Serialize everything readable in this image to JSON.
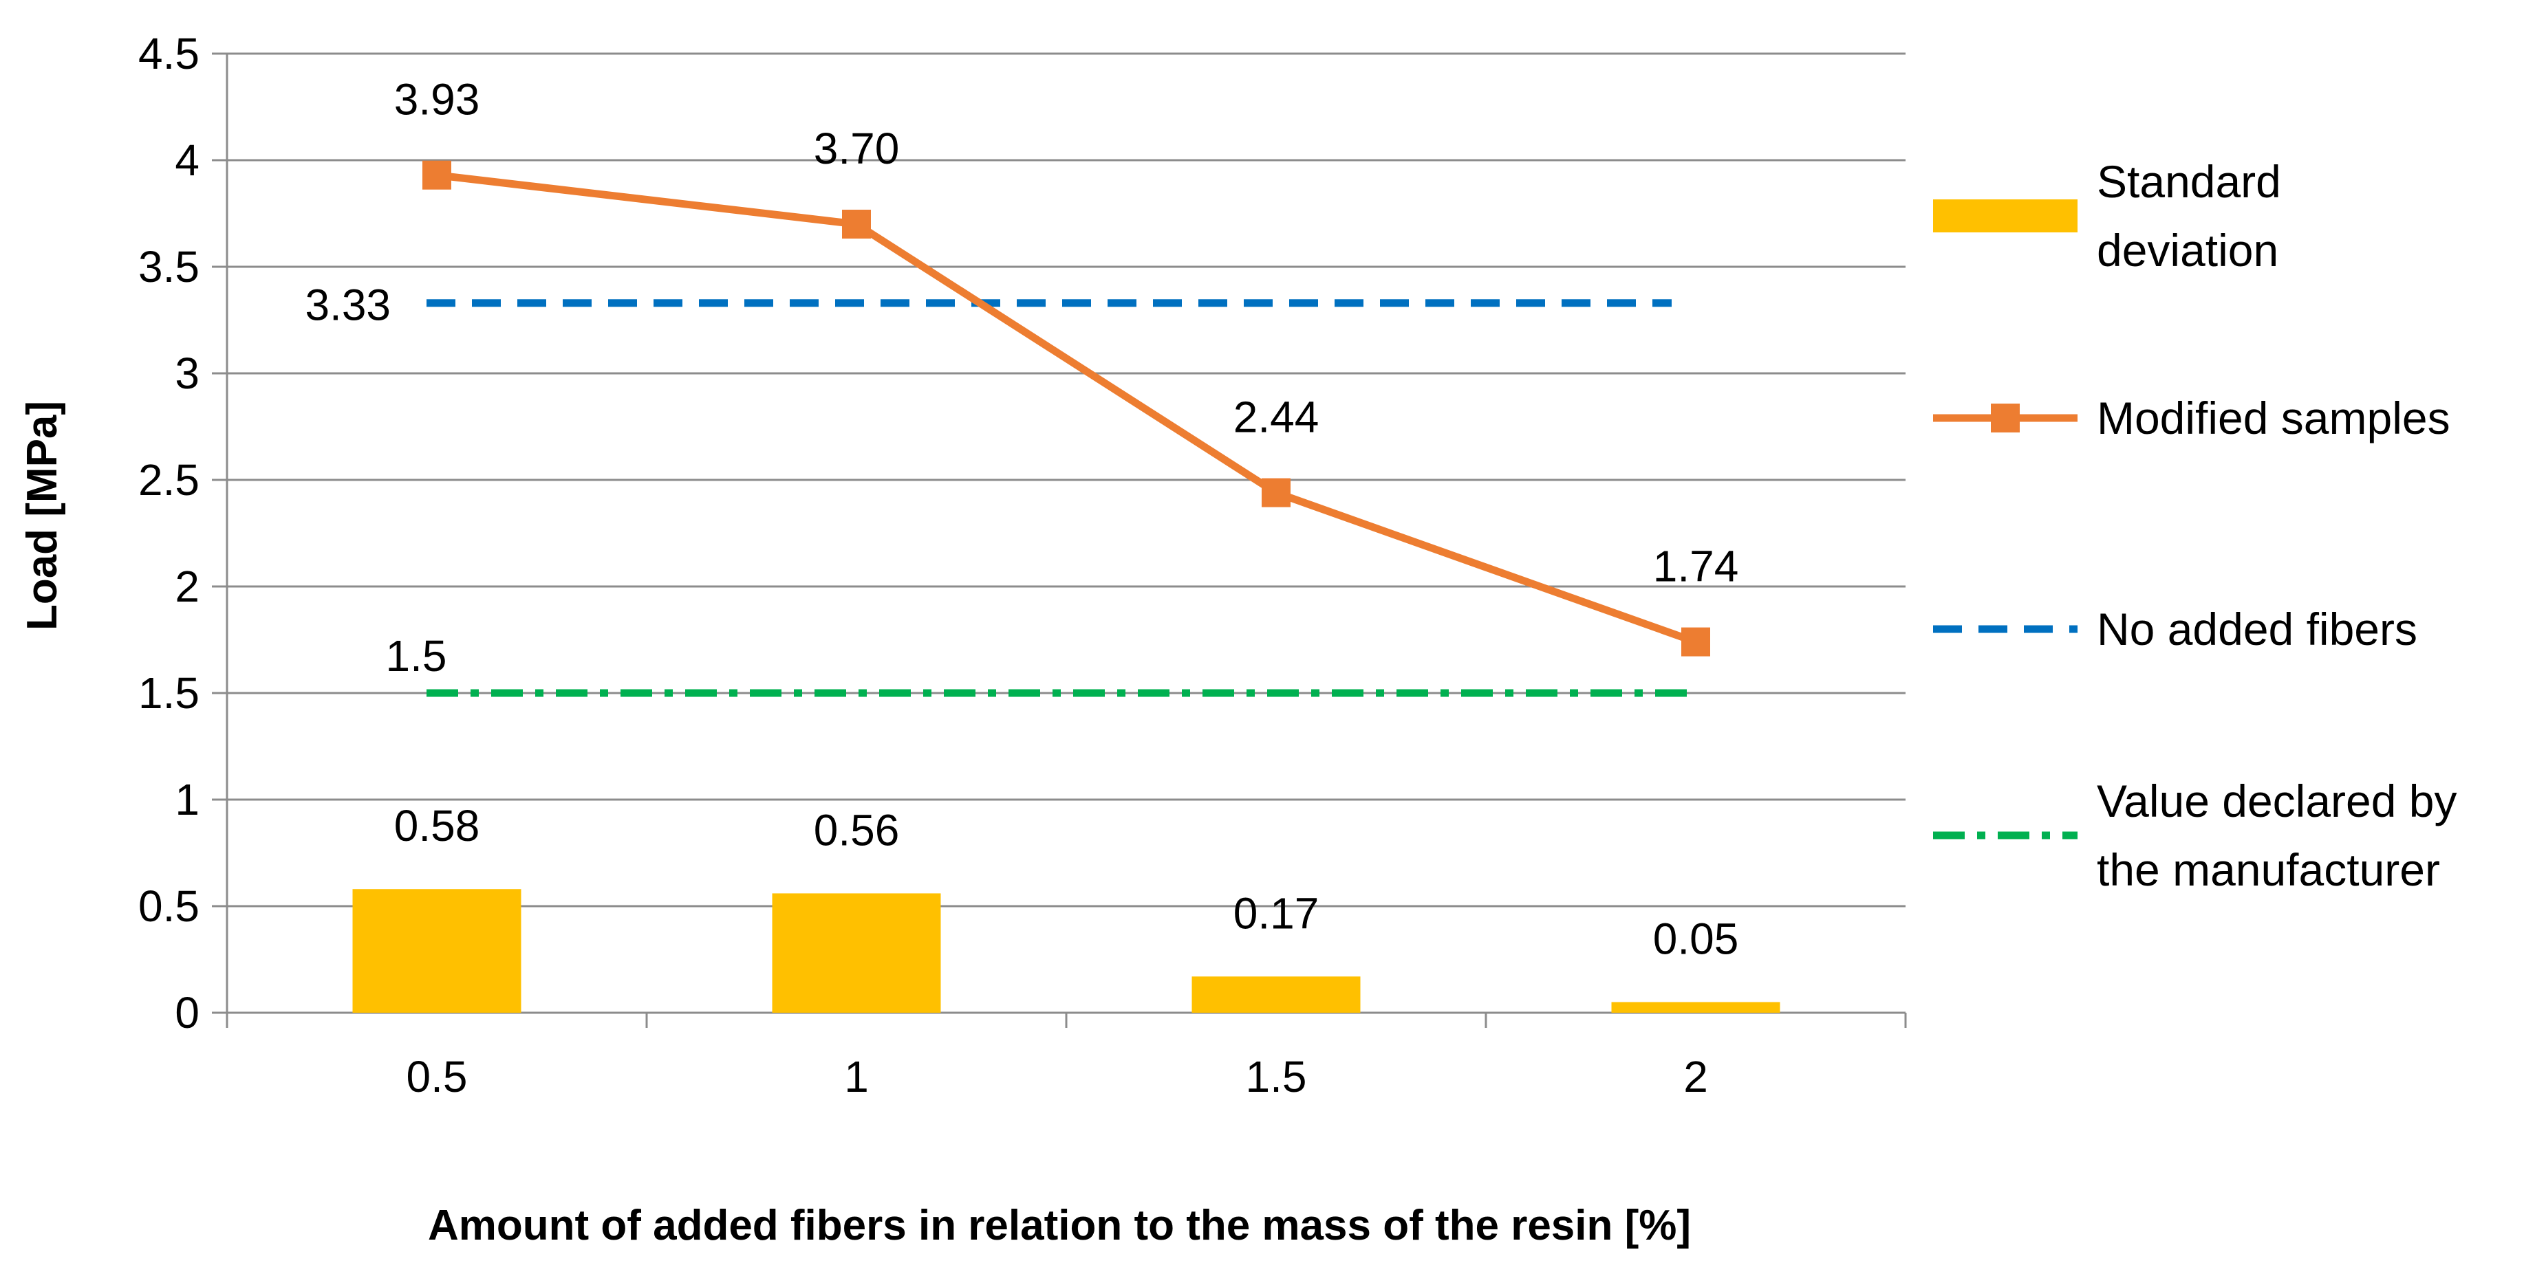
{
  "chart_data": {
    "type": "bar+line",
    "title": "",
    "xlabel": "Amount of added fibers in relation to the mass of the resin [%]",
    "ylabel": "Load [MPa]",
    "ylim": [
      0,
      4.5
    ],
    "yticks": [
      "0",
      "0.5",
      "1",
      "1.5",
      "2",
      "2.5",
      "3",
      "3.5",
      "4",
      "4.5"
    ],
    "categories": [
      "0.5",
      "1",
      "1.5",
      "2"
    ],
    "grid": true,
    "legend_position": "right",
    "series": [
      {
        "name": "Standard deviation",
        "kind": "bar",
        "color": "#FFC000",
        "values": [
          0.58,
          0.56,
          0.17,
          0.05
        ],
        "labels": [
          "0.58",
          "0.56",
          "0.17",
          "0.05"
        ]
      },
      {
        "name": "Modified samples",
        "kind": "line-marker",
        "color": "#ED7D31",
        "values": [
          3.93,
          3.7,
          2.44,
          1.74
        ],
        "labels": [
          "3.93",
          "3.70",
          "2.44",
          "1.74"
        ]
      },
      {
        "name": "No added fibers",
        "kind": "dashed-line",
        "color": "#0070C0",
        "values": [
          3.33,
          3.33,
          3.33,
          3.33
        ],
        "labels": [
          "3.33"
        ]
      },
      {
        "name": "Value declared by the manufacturer",
        "kind": "dash-dot-line",
        "color": "#00B050",
        "values": [
          1.5,
          1.5,
          1.5,
          1.5
        ],
        "labels": [
          "1.5"
        ]
      }
    ],
    "legend": [
      {
        "lines": [
          "Standard",
          "deviation"
        ]
      },
      {
        "lines": [
          "Modified samples"
        ]
      },
      {
        "lines": [
          "No added fibers"
        ]
      },
      {
        "lines": [
          "Value declared by",
          "the manufacturer"
        ]
      }
    ]
  }
}
